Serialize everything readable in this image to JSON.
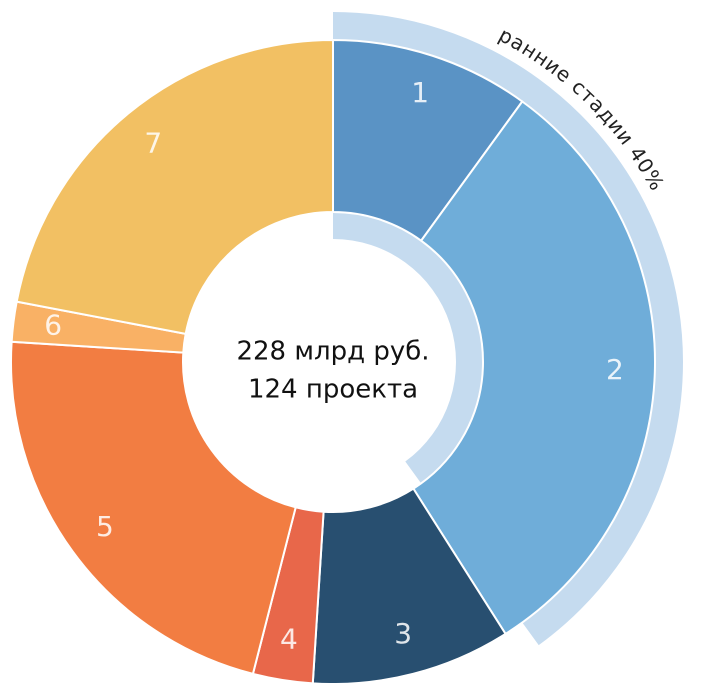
{
  "chart_data": {
    "type": "donut",
    "categories": [
      "1",
      "2",
      "3",
      "4",
      "5",
      "6",
      "7"
    ],
    "values": [
      10,
      31,
      10,
      3,
      22,
      2,
      22
    ],
    "colors": [
      "#5a93c5",
      "#6fadd9",
      "#284f70",
      "#e8674a",
      "#f27d42",
      "#f9b165",
      "#f2c063"
    ],
    "center_text": [
      "228 млрд руб.",
      "124 проекта"
    ],
    "highlight": {
      "label": "ранние стадии 40%",
      "value": 40,
      "color": "#c5dbef"
    }
  }
}
